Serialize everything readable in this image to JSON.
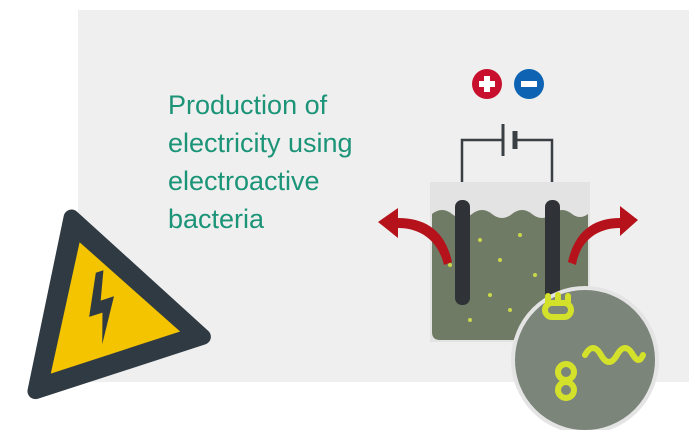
{
  "title_lines": [
    "Production of",
    "electricity using",
    "electroactive",
    "bacteria"
  ]
}
